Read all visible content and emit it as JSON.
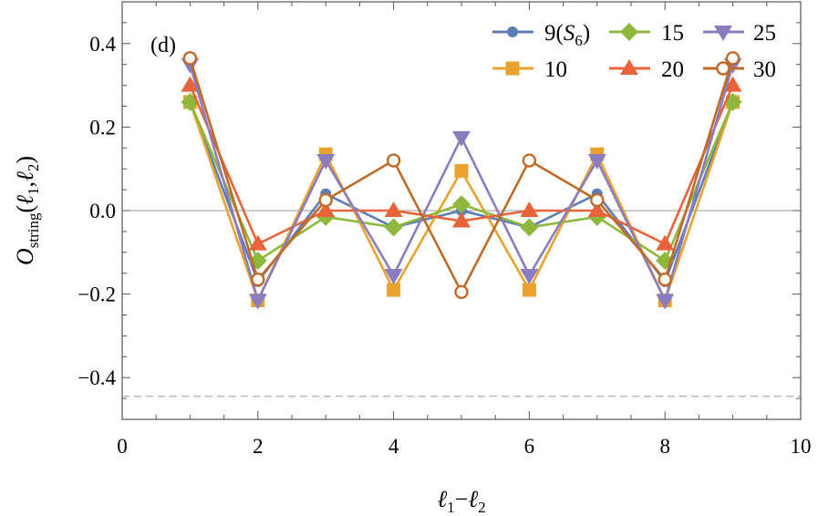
{
  "panel_label": "(d)",
  "chart_data": {
    "type": "line",
    "xlabel": "ℓ1−ℓ2",
    "ylabel": "Ostring(ℓ1,ℓ2)",
    "xlim": [
      0,
      10
    ],
    "ylim": [
      -0.5,
      0.5
    ],
    "x_ticks": [
      "0",
      "2",
      "4",
      "6",
      "8",
      "10"
    ],
    "y_ticks": [
      "0.4",
      "0.2",
      "0.0",
      "−0.2",
      "−0.4"
    ],
    "x": [
      1,
      2,
      3,
      4,
      5,
      6,
      7,
      8,
      9
    ],
    "grid": false,
    "legend_position": "top-right",
    "reference_lines": [
      {
        "y": 0.0,
        "style": "solid",
        "color": "#999999"
      },
      {
        "y": -0.445,
        "style": "dashed",
        "color": "#9a9a9a"
      }
    ],
    "series": [
      {
        "name": "9(S6)",
        "color": "#5b7fb4",
        "marker": "circle",
        "values": [
          0.26,
          -0.17,
          0.04,
          -0.04,
          0.0,
          -0.04,
          0.04,
          -0.17,
          0.26
        ]
      },
      {
        "name": "10",
        "color": "#e8a22d",
        "marker": "square",
        "values": [
          0.26,
          -0.215,
          0.135,
          -0.19,
          0.095,
          -0.19,
          0.135,
          -0.215,
          0.26
        ]
      },
      {
        "name": "15",
        "color": "#8eb83c",
        "marker": "diamond",
        "values": [
          0.26,
          -0.12,
          -0.015,
          -0.04,
          0.015,
          -0.04,
          -0.015,
          -0.12,
          0.26
        ]
      },
      {
        "name": "20",
        "color": "#e8633a",
        "marker": "triangle-up",
        "values": [
          0.3,
          -0.08,
          0.0,
          0.0,
          -0.025,
          0.0,
          0.0,
          -0.08,
          0.3
        ]
      },
      {
        "name": "25",
        "color": "#8b7cc0",
        "marker": "triangle-down",
        "values": [
          0.35,
          -0.215,
          0.12,
          -0.155,
          0.175,
          -0.155,
          0.12,
          -0.215,
          0.35
        ]
      },
      {
        "name": "30",
        "color": "#c06a27",
        "marker": "open-circle",
        "values": [
          0.365,
          -0.165,
          0.025,
          0.12,
          -0.195,
          0.12,
          0.025,
          -0.165,
          0.365
        ]
      }
    ]
  }
}
